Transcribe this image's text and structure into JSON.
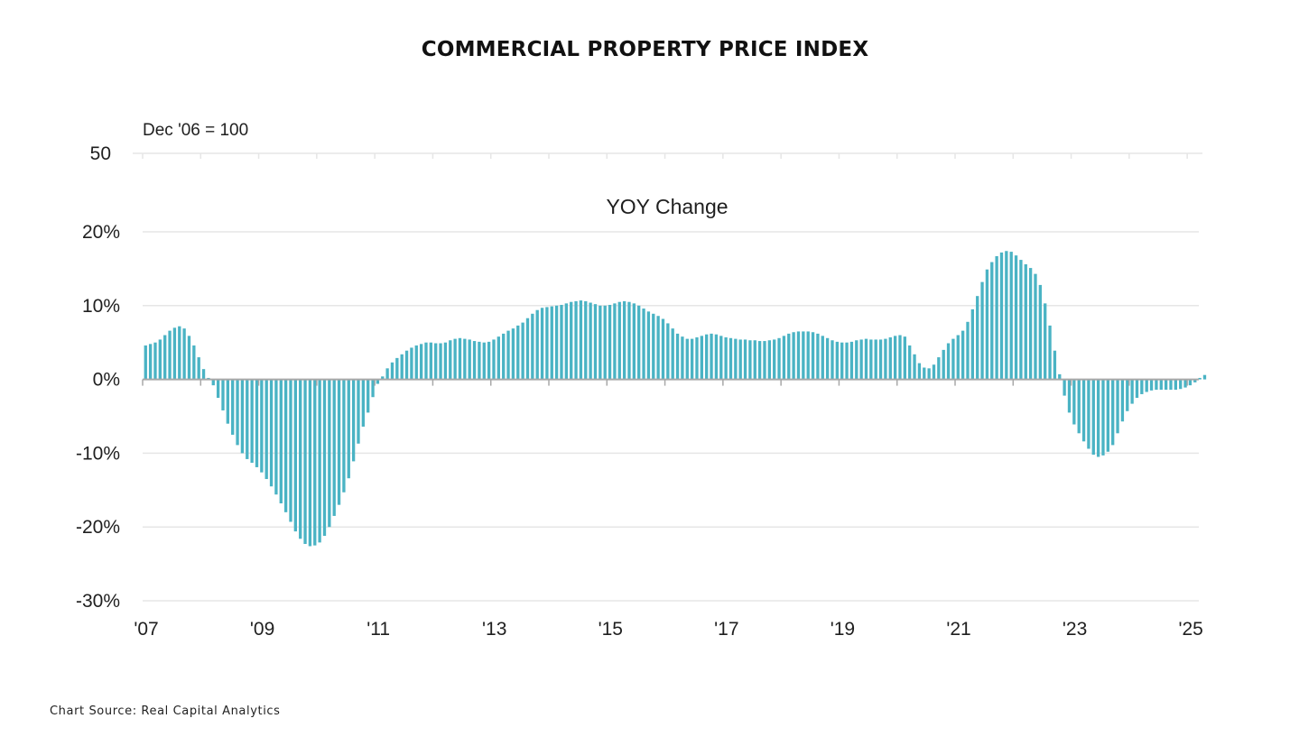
{
  "title": "COMMERCIAL PROPERTY PRICE INDEX",
  "source": "Chart Source: Real Capital Analytics",
  "colors": {
    "bar": "#4ab3c4",
    "grid": "#e6e6e6",
    "axis": "#a8a8a8",
    "text": "#1f1f1f"
  },
  "chart_data": {
    "type": "bar",
    "title": "YOY Change",
    "index_label": "Dec '06 = 100",
    "index_tick": "50",
    "ylim": [
      -30,
      20
    ],
    "yticks": [
      20,
      10,
      0,
      -10,
      -20,
      -30
    ],
    "ytick_labels": [
      "20%",
      "10%",
      "0%",
      "-10%",
      "-20%",
      "-30%"
    ],
    "xlim": [
      2007,
      2025.2
    ],
    "xticks": [
      2007,
      2009,
      2011,
      2013,
      2015,
      2017,
      2019,
      2021,
      2023,
      2025
    ],
    "xtick_labels": [
      "'07",
      "'09",
      "'11",
      "'13",
      "'15",
      "'17",
      "'19",
      "'21",
      "'23",
      "'25"
    ],
    "xlabel": "",
    "ylabel": "",
    "series": [
      {
        "name": "YOY Change",
        "start": "2007-01",
        "frequency": "monthly",
        "values": [
          4.6,
          4.8,
          5.0,
          5.4,
          6.0,
          6.6,
          7.0,
          7.2,
          6.9,
          5.9,
          4.6,
          3.0,
          1.4,
          0.2,
          -0.8,
          -2.5,
          -4.2,
          -6.0,
          -7.5,
          -8.9,
          -10.0,
          -10.8,
          -11.3,
          -11.9,
          -12.6,
          -13.5,
          -14.5,
          -15.6,
          -16.8,
          -18.0,
          -19.3,
          -20.6,
          -21.6,
          -22.3,
          -22.6,
          -22.5,
          -22.1,
          -21.2,
          -20.0,
          -18.5,
          -17.0,
          -15.3,
          -13.4,
          -11.1,
          -8.7,
          -6.4,
          -4.5,
          -2.4,
          -0.6,
          0.4,
          1.5,
          2.3,
          2.9,
          3.4,
          3.9,
          4.3,
          4.6,
          4.8,
          5.0,
          5.0,
          4.9,
          4.9,
          5.0,
          5.3,
          5.5,
          5.6,
          5.5,
          5.4,
          5.2,
          5.1,
          5.0,
          5.1,
          5.4,
          5.8,
          6.2,
          6.6,
          6.9,
          7.3,
          7.7,
          8.3,
          8.9,
          9.4,
          9.7,
          9.8,
          9.9,
          10.0,
          10.1,
          10.3,
          10.5,
          10.6,
          10.7,
          10.6,
          10.4,
          10.2,
          10.0,
          10.0,
          10.1,
          10.3,
          10.5,
          10.6,
          10.5,
          10.3,
          10.0,
          9.6,
          9.2,
          8.9,
          8.6,
          8.2,
          7.6,
          6.9,
          6.2,
          5.8,
          5.5,
          5.5,
          5.7,
          5.9,
          6.1,
          6.2,
          6.1,
          5.9,
          5.7,
          5.6,
          5.5,
          5.4,
          5.4,
          5.3,
          5.3,
          5.2,
          5.2,
          5.3,
          5.4,
          5.6,
          5.9,
          6.2,
          6.4,
          6.5,
          6.5,
          6.5,
          6.4,
          6.2,
          5.9,
          5.6,
          5.3,
          5.1,
          5.0,
          5.0,
          5.1,
          5.3,
          5.4,
          5.5,
          5.4,
          5.4,
          5.4,
          5.5,
          5.7,
          5.9,
          6.0,
          5.8,
          4.6,
          3.4,
          2.2,
          1.6,
          1.5,
          2.0,
          3.0,
          4.0,
          4.9,
          5.5,
          6.0,
          6.6,
          7.8,
          9.5,
          11.3,
          13.2,
          14.9,
          15.9,
          16.7,
          17.2,
          17.4,
          17.3,
          16.8,
          16.2,
          15.6,
          15.1,
          14.3,
          12.8,
          10.3,
          7.3,
          3.9,
          0.7,
          -2.2,
          -4.5,
          -6.1,
          -7.3,
          -8.4,
          -9.4,
          -10.2,
          -10.5,
          -10.3,
          -9.8,
          -8.9,
          -7.3,
          -5.7,
          -4.3,
          -3.3,
          -2.5,
          -2.0,
          -1.7,
          -1.5,
          -1.4,
          -1.4,
          -1.4,
          -1.4,
          -1.4,
          -1.3,
          -1.1,
          -0.8,
          -0.4,
          0.2,
          0.6
        ]
      }
    ]
  }
}
